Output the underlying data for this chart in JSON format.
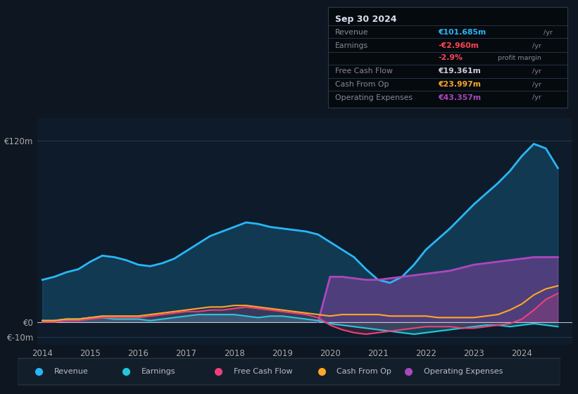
{
  "bg_color": "#0e1621",
  "plot_bg_color": "#0d1b2a",
  "years": [
    2014.0,
    2014.25,
    2014.5,
    2014.75,
    2015.0,
    2015.25,
    2015.5,
    2015.75,
    2016.0,
    2016.25,
    2016.5,
    2016.75,
    2017.0,
    2017.25,
    2017.5,
    2017.75,
    2018.0,
    2018.25,
    2018.5,
    2018.75,
    2019.0,
    2019.25,
    2019.5,
    2019.75,
    2020.0,
    2020.25,
    2020.5,
    2020.75,
    2021.0,
    2021.25,
    2021.5,
    2021.75,
    2022.0,
    2022.25,
    2022.5,
    2022.75,
    2023.0,
    2023.25,
    2023.5,
    2023.75,
    2024.0,
    2024.25,
    2024.5,
    2024.75
  ],
  "revenue": [
    28,
    30,
    33,
    35,
    40,
    44,
    43,
    41,
    38,
    37,
    39,
    42,
    47,
    52,
    57,
    60,
    63,
    66,
    65,
    63,
    62,
    61,
    60,
    58,
    53,
    48,
    43,
    35,
    28,
    26,
    30,
    38,
    48,
    55,
    62,
    70,
    78,
    85,
    92,
    100,
    110,
    118,
    115,
    102
  ],
  "earnings": [
    1,
    1,
    2,
    2,
    3,
    3,
    2,
    2,
    2,
    1,
    2,
    3,
    4,
    5,
    5,
    5,
    5,
    4,
    3,
    4,
    4,
    3,
    2,
    1,
    -1,
    -2,
    -3,
    -4,
    -5,
    -6,
    -7,
    -8,
    -7,
    -6,
    -5,
    -4,
    -3,
    -2,
    -2,
    -3,
    -2,
    -1,
    -2,
    -3
  ],
  "free_cash_flow": [
    0,
    0,
    1,
    1,
    2,
    3,
    3,
    3,
    3,
    4,
    5,
    6,
    7,
    7,
    8,
    8,
    9,
    10,
    9,
    8,
    7,
    6,
    5,
    3,
    -2,
    -5,
    -7,
    -8,
    -7,
    -6,
    -5,
    -4,
    -3,
    -3,
    -3,
    -4,
    -4,
    -3,
    -2,
    -1,
    2,
    8,
    15,
    19
  ],
  "cash_from_op": [
    1,
    1,
    2,
    2,
    3,
    4,
    4,
    4,
    4,
    5,
    6,
    7,
    8,
    9,
    10,
    10,
    11,
    11,
    10,
    9,
    8,
    7,
    6,
    5,
    4,
    5,
    5,
    5,
    5,
    4,
    4,
    4,
    4,
    3,
    3,
    3,
    3,
    4,
    5,
    8,
    12,
    18,
    22,
    24
  ],
  "operating_expenses_x": [
    2019.75,
    2020.0,
    2020.25,
    2020.5,
    2020.75,
    2021.0,
    2021.25,
    2021.5,
    2021.75,
    2022.0,
    2022.25,
    2022.5,
    2022.75,
    2023.0,
    2023.25,
    2023.5,
    2023.75,
    2024.0,
    2024.25,
    2024.5,
    2024.75
  ],
  "operating_expenses_y": [
    0,
    30,
    30,
    29,
    28,
    28,
    29,
    30,
    31,
    32,
    33,
    34,
    36,
    38,
    39,
    40,
    41,
    42,
    43,
    43,
    43
  ],
  "ylim_min": -15,
  "ylim_max": 135,
  "ytick_vals": [
    -10,
    0,
    120
  ],
  "ytick_labels": [
    "€-10m",
    "€0",
    "€120m"
  ],
  "xticks": [
    2014,
    2015,
    2016,
    2017,
    2018,
    2019,
    2020,
    2021,
    2022,
    2023,
    2024
  ],
  "revenue_color": "#29b6f6",
  "earnings_color": "#26c6da",
  "fcf_color": "#ec407a",
  "cashop_color": "#ffa726",
  "opex_color": "#ab47bc",
  "info_box": {
    "date": "Sep 30 2024",
    "revenue_val": "€101.685m",
    "earnings_val": "-€2.960m",
    "margin_val": "-2.9%",
    "fcf_val": "€19.361m",
    "cashop_val": "€23.997m",
    "opex_val": "€43.357m"
  },
  "legend_items": [
    "Revenue",
    "Earnings",
    "Free Cash Flow",
    "Cash From Op",
    "Operating Expenses"
  ],
  "legend_colors": [
    "#29b6f6",
    "#26c6da",
    "#ec407a",
    "#ffa726",
    "#ab47bc"
  ]
}
